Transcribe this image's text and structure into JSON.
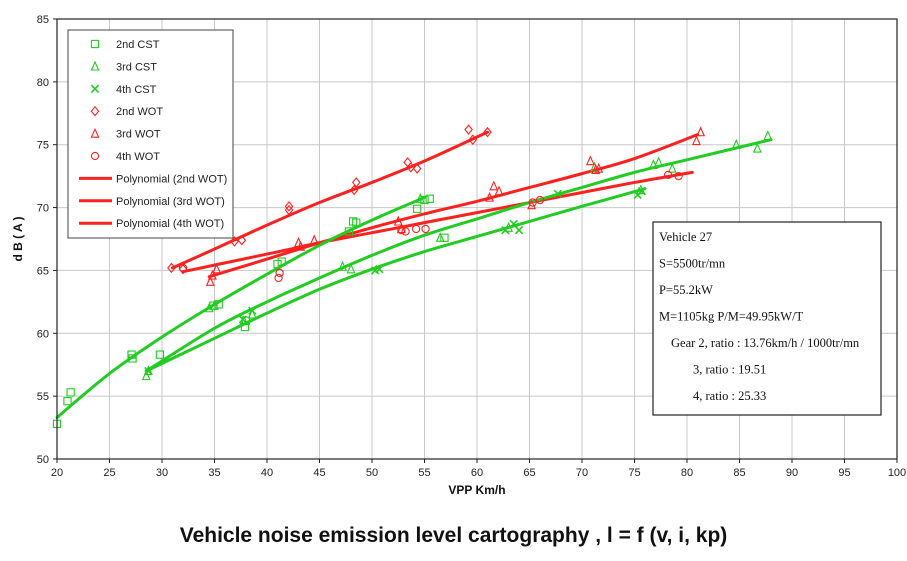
{
  "caption": "Vehicle noise emission level cartography , l = f (v, i, kp)",
  "info_box": {
    "lines": [
      "Vehicle 27",
      "S=5500tr/mn",
      "P=55.2kW",
      "M=1105kg    P/M=49.95kW/T",
      "Gear 2, ratio : 13.76km/h / 1000tr/mn",
      "3, ratio : 19.51",
      "4, ratio : 25.33"
    ]
  },
  "chart_data": {
    "type": "scatter",
    "title": "",
    "xlabel": "VPP Km/h",
    "ylabel": "d B  ( A )",
    "xlim": [
      20,
      100
    ],
    "ylim": [
      50,
      85
    ],
    "xticks": [
      20,
      25,
      30,
      35,
      40,
      45,
      50,
      55,
      60,
      65,
      70,
      75,
      80,
      85,
      90,
      95,
      100
    ],
    "yticks": [
      50,
      55,
      60,
      65,
      70,
      75,
      80,
      85
    ],
    "grid": true,
    "legend_position": "top-left",
    "series": [
      {
        "name": "2nd CST",
        "marker": "square",
        "color": "#22cc22",
        "points": [
          [
            20,
            52.8
          ],
          [
            21,
            54.6
          ],
          [
            21.3,
            55.3
          ],
          [
            27.1,
            58.3
          ],
          [
            27.2,
            58.0
          ],
          [
            29.8,
            58.3
          ],
          [
            34.9,
            62.2
          ],
          [
            35.4,
            62.3
          ],
          [
            37.9,
            60.5
          ],
          [
            38,
            61
          ],
          [
            41,
            65.5
          ],
          [
            41.4,
            65.7
          ],
          [
            47.8,
            68.1
          ],
          [
            48.2,
            68.9
          ],
          [
            48.5,
            68.8
          ],
          [
            54.3,
            69.9
          ],
          [
            55,
            70.6
          ],
          [
            55.5,
            70.7
          ],
          [
            56.9,
            67.6
          ]
        ]
      },
      {
        "name": "3rd CST",
        "marker": "triangle",
        "color": "#22cc22",
        "points": [
          [
            28.5,
            56.6
          ],
          [
            28.7,
            57
          ],
          [
            34.5,
            62
          ],
          [
            35,
            62.2
          ],
          [
            37.8,
            61
          ],
          [
            38.6,
            61.5
          ],
          [
            47.2,
            65.3
          ],
          [
            48,
            65.1
          ],
          [
            54.6,
            70.7
          ],
          [
            56.5,
            67.6
          ],
          [
            63,
            68.4
          ],
          [
            71.2,
            73.2
          ],
          [
            75.6,
            71.4
          ],
          [
            76.8,
            73.4
          ],
          [
            77.3,
            73.6
          ],
          [
            78.6,
            73.1
          ],
          [
            84.7,
            75
          ],
          [
            86.7,
            74.7
          ],
          [
            87.7,
            75.7
          ]
        ]
      },
      {
        "name": "4th CST",
        "marker": "x",
        "color": "#22cc22",
        "points": [
          [
            28.7,
            57
          ],
          [
            37.7,
            61.1
          ],
          [
            38.6,
            61.8
          ],
          [
            50.3,
            65
          ],
          [
            50.7,
            65.1
          ],
          [
            62.7,
            68.2
          ],
          [
            63.5,
            68.7
          ],
          [
            64,
            68.2
          ],
          [
            67.7,
            71.1
          ],
          [
            75.3,
            71
          ],
          [
            75.7,
            71.3
          ]
        ]
      },
      {
        "name": "2nd WOT",
        "marker": "diamond",
        "color": "#ff2020",
        "points": [
          [
            30.9,
            65.2
          ],
          [
            32,
            65.1
          ],
          [
            36.9,
            67.3
          ],
          [
            37.6,
            67.4
          ],
          [
            42.1,
            69.8
          ],
          [
            42.1,
            70.1
          ],
          [
            48.3,
            71.4
          ],
          [
            48.5,
            72
          ],
          [
            53.4,
            73.6
          ],
          [
            53.7,
            73.2
          ],
          [
            54.3,
            73.1
          ],
          [
            59.2,
            76.2
          ],
          [
            59.6,
            75.4
          ],
          [
            61,
            76
          ]
        ]
      },
      {
        "name": "3rd WOT",
        "marker": "triangle",
        "color": "#ff2020",
        "points": [
          [
            34.6,
            64.1
          ],
          [
            34.8,
            64.6
          ],
          [
            35.2,
            65.1
          ],
          [
            43,
            67.2
          ],
          [
            43.2,
            66.9
          ],
          [
            44.5,
            67.4
          ],
          [
            52.5,
            68.9
          ],
          [
            52.8,
            68.3
          ],
          [
            61.2,
            70.8
          ],
          [
            61.6,
            71.7
          ],
          [
            62.1,
            71.3
          ],
          [
            65.2,
            70.2
          ],
          [
            70.8,
            73.7
          ],
          [
            71.3,
            73
          ],
          [
            71.6,
            73.1
          ],
          [
            80.9,
            75.3
          ],
          [
            81.3,
            76
          ]
        ]
      },
      {
        "name": "4th WOT",
        "marker": "circle",
        "color": "#ff2020",
        "points": [
          [
            32,
            65.2
          ],
          [
            41.1,
            64.4
          ],
          [
            41.2,
            64.8
          ],
          [
            52.8,
            68.2
          ],
          [
            53.2,
            68.1
          ],
          [
            54.2,
            68.3
          ],
          [
            55.1,
            68.3
          ],
          [
            65.3,
            70.4
          ],
          [
            66,
            70.6
          ],
          [
            78.2,
            72.6
          ],
          [
            79.2,
            72.5
          ]
        ]
      }
    ],
    "trendlines": [
      {
        "name": "Polynomial (2nd WOT)",
        "color": "#ff2020",
        "x_range": [
          31,
          61
        ],
        "curve": "2nd WOT",
        "points": [
          [
            31,
            65.2
          ],
          [
            35,
            66.7
          ],
          [
            40,
            68.6
          ],
          [
            45,
            70.4
          ],
          [
            50,
            72
          ],
          [
            55,
            73.7
          ],
          [
            61,
            76
          ]
        ]
      },
      {
        "name": "Polynomial (3rd WOT)",
        "color": "#ff2020",
        "x_range": [
          34.5,
          81
        ],
        "curve": "3rd WOT",
        "points": [
          [
            34.5,
            64.5
          ],
          [
            40,
            65.9
          ],
          [
            45,
            67.2
          ],
          [
            50,
            68.4
          ],
          [
            55,
            69.5
          ],
          [
            60,
            70.5
          ],
          [
            65,
            71.6
          ],
          [
            70,
            72.7
          ],
          [
            75,
            73.9
          ],
          [
            81,
            75.8
          ]
        ]
      },
      {
        "name": "Polynomial (4th WOT)",
        "color": "#ff2020",
        "x_range": [
          32,
          80.5
        ],
        "curve": "4th WOT",
        "points": [
          [
            32,
            64.9
          ],
          [
            40,
            66.3
          ],
          [
            45,
            67.2
          ],
          [
            50,
            68
          ],
          [
            55,
            68.8
          ],
          [
            60,
            69.6
          ],
          [
            65,
            70.4
          ],
          [
            70,
            71.2
          ],
          [
            75,
            72
          ],
          [
            80.5,
            72.8
          ]
        ]
      },
      {
        "name": "",
        "color": "#22cc22",
        "x_range": [
          20,
          55
        ],
        "curve": "2nd CST",
        "points": [
          [
            20,
            53.3
          ],
          [
            25,
            56.8
          ],
          [
            30,
            59.7
          ],
          [
            35,
            62.3
          ],
          [
            40,
            64.7
          ],
          [
            45,
            67
          ],
          [
            50,
            69
          ],
          [
            55,
            70.8
          ]
        ]
      },
      {
        "name": "",
        "color": "#22cc22",
        "x_range": [
          28.5,
          88
        ],
        "curve": "3rd CST",
        "points": [
          [
            28.5,
            57
          ],
          [
            35,
            60.4
          ],
          [
            40,
            62.5
          ],
          [
            45,
            64.4
          ],
          [
            50,
            66.2
          ],
          [
            55,
            67.8
          ],
          [
            60,
            69.1
          ],
          [
            65,
            70.4
          ],
          [
            70,
            71.6
          ],
          [
            75,
            72.8
          ],
          [
            80,
            73.8
          ],
          [
            88,
            75.4
          ]
        ]
      },
      {
        "name": "",
        "color": "#22cc22",
        "x_range": [
          28.5,
          76
        ],
        "curve": "4th CST",
        "points": [
          [
            28.5,
            57
          ],
          [
            35,
            59.6
          ],
          [
            40,
            61.6
          ],
          [
            45,
            63.5
          ],
          [
            50,
            65.1
          ],
          [
            55,
            66.5
          ],
          [
            60,
            67.7
          ],
          [
            65,
            68.9
          ],
          [
            70,
            70.1
          ],
          [
            76,
            71.5
          ]
        ]
      }
    ],
    "legend": [
      "2nd CST",
      "3rd CST",
      "4th CST",
      "2nd WOT",
      "3rd WOT",
      "4th WOT",
      "Polynomial (2nd WOT)",
      "Polynomial (3rd WOT)",
      "Polynomial (4th WOT)"
    ]
  }
}
